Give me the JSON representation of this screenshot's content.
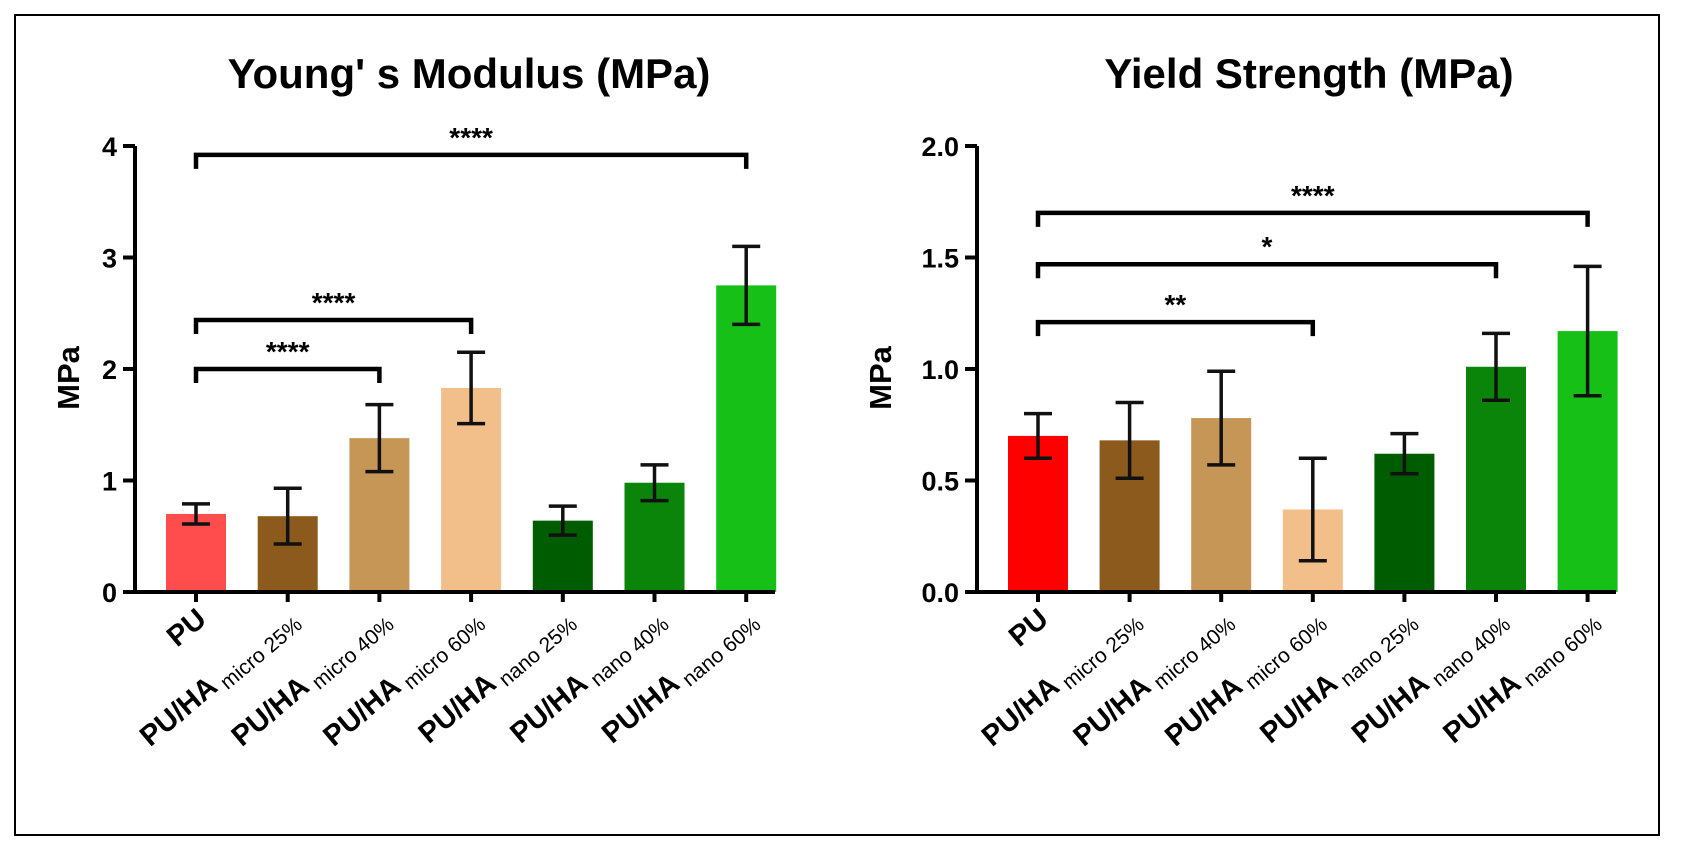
{
  "chart_data": [
    {
      "type": "bar",
      "title": "Young' s Modulus (MPa)",
      "ylabel": "MPa",
      "xlabel": "",
      "ylim": [
        0,
        4
      ],
      "yticks": [
        "0",
        "1",
        "2",
        "3",
        "4"
      ],
      "categories": [
        {
          "main": "PU",
          "sub": ""
        },
        {
          "main": "PU/HA",
          "sub": "micro 25%"
        },
        {
          "main": "PU/HA",
          "sub": "micro 40%"
        },
        {
          "main": "PU/HA",
          "sub": "micro 60%"
        },
        {
          "main": "PU/HA",
          "sub": "nano 25%"
        },
        {
          "main": "PU/HA",
          "sub": "nano 40%"
        },
        {
          "main": "PU/HA",
          "sub": "nano 60%"
        }
      ],
      "values": [
        0.7,
        0.68,
        1.38,
        1.83,
        0.64,
        0.98,
        2.75
      ],
      "errors": [
        0.09,
        0.25,
        0.3,
        0.32,
        0.13,
        0.16,
        0.35
      ],
      "colors": [
        "#ff4d4d",
        "#8c5a1c",
        "#c69656",
        "#f2be8a",
        "#005c00",
        "#0a850a",
        "#17c017"
      ],
      "significance": [
        {
          "from": 0,
          "to": 6,
          "y": 3.92,
          "label": "****"
        },
        {
          "from": 0,
          "to": 3,
          "y": 2.44,
          "label": "****"
        },
        {
          "from": 0,
          "to": 2,
          "y": 2.0,
          "label": "****"
        }
      ]
    },
    {
      "type": "bar",
      "title": "Yield Strength (MPa)",
      "ylabel": "MPa",
      "xlabel": "",
      "ylim": [
        0,
        2.0
      ],
      "yticks": [
        "0.0",
        "0.5",
        "1.0",
        "1.5",
        "2.0"
      ],
      "categories": [
        {
          "main": "PU",
          "sub": ""
        },
        {
          "main": "PU/HA",
          "sub": "micro 25%"
        },
        {
          "main": "PU/HA",
          "sub": "micro 40%"
        },
        {
          "main": "PU/HA",
          "sub": "micro 60%"
        },
        {
          "main": "PU/HA",
          "sub": "nano 25%"
        },
        {
          "main": "PU/HA",
          "sub": "nano 40%"
        },
        {
          "main": "PU/HA",
          "sub": "nano 60%"
        }
      ],
      "values": [
        0.7,
        0.68,
        0.78,
        0.37,
        0.62,
        1.01,
        1.17
      ],
      "errors": [
        0.1,
        0.17,
        0.21,
        0.23,
        0.09,
        0.15,
        0.29
      ],
      "colors": [
        "#ff0000",
        "#8c5a1c",
        "#c69656",
        "#f2be8a",
        "#005c00",
        "#0a850a",
        "#17c017"
      ],
      "significance": [
        {
          "from": 0,
          "to": 6,
          "y": 1.7,
          "label": "****"
        },
        {
          "from": 0,
          "to": 5,
          "y": 1.47,
          "label": "*"
        },
        {
          "from": 0,
          "to": 3,
          "y": 1.21,
          "label": "**"
        }
      ]
    }
  ]
}
